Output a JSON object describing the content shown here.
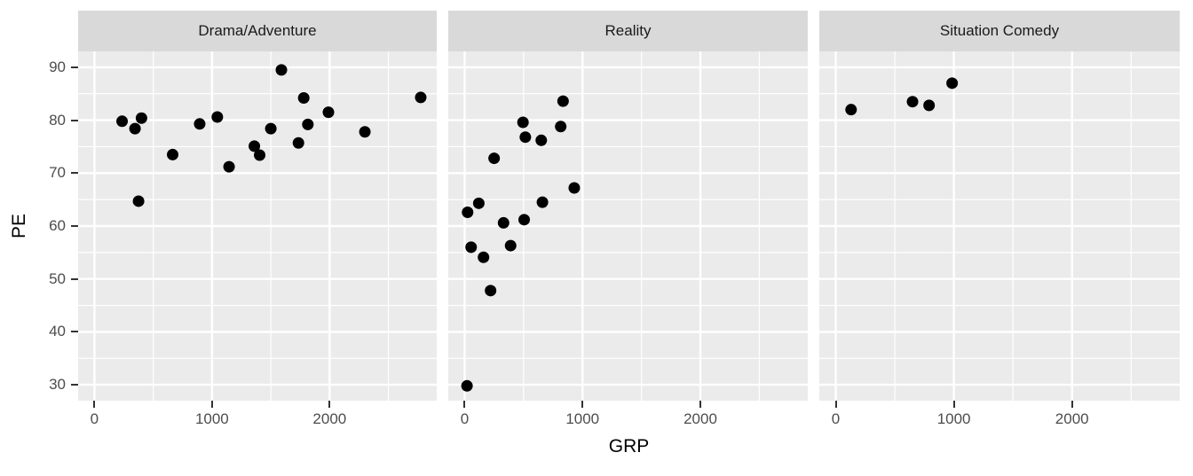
{
  "chart_data": {
    "type": "scatter",
    "title": "",
    "xlabel": "GRP",
    "ylabel": "PE",
    "x_ticks": [
      0,
      1000,
      2000
    ],
    "y_ticks": [
      30,
      40,
      50,
      60,
      70,
      80,
      90
    ],
    "x_minor": [
      500,
      1500,
      2500
    ],
    "y_minor": [
      35,
      45,
      55,
      65,
      75,
      85
    ],
    "xlim": [
      -139,
      2911
    ],
    "ylim": [
      27,
      93
    ],
    "grid": "major-and-minor-white-on-gray",
    "legend": "none",
    "facets": [
      {
        "label": "Drama/Adventure",
        "points": [
          [
            235,
            79.8
          ],
          [
            345,
            78.4
          ],
          [
            400,
            80.4
          ],
          [
            375,
            64.7
          ],
          [
            665,
            73.5
          ],
          [
            895,
            79.3
          ],
          [
            1045,
            80.6
          ],
          [
            1145,
            71.2
          ],
          [
            1360,
            75.1
          ],
          [
            1405,
            73.4
          ],
          [
            1500,
            78.4
          ],
          [
            1590,
            89.5
          ],
          [
            1735,
            75.7
          ],
          [
            1780,
            84.2
          ],
          [
            1815,
            79.2
          ],
          [
            1990,
            81.5
          ],
          [
            2300,
            77.8
          ],
          [
            2775,
            84.3
          ]
        ]
      },
      {
        "label": "Reality",
        "points": [
          [
            20,
            29.8
          ],
          [
            25,
            62.6
          ],
          [
            55,
            56.0
          ],
          [
            120,
            64.3
          ],
          [
            160,
            54.1
          ],
          [
            220,
            47.8
          ],
          [
            250,
            72.8
          ],
          [
            330,
            60.6
          ],
          [
            390,
            56.3
          ],
          [
            495,
            79.6
          ],
          [
            505,
            61.2
          ],
          [
            515,
            76.8
          ],
          [
            650,
            76.2
          ],
          [
            660,
            64.5
          ],
          [
            815,
            78.8
          ],
          [
            835,
            83.6
          ],
          [
            930,
            67.2
          ]
        ]
      },
      {
        "label": "Situation Comedy",
        "points": [
          [
            130,
            82.0
          ],
          [
            650,
            83.5
          ],
          [
            790,
            82.8
          ],
          [
            985,
            87.0
          ]
        ]
      }
    ],
    "style": {
      "panel_bg": "#EBEBEB",
      "strip_bg": "#D9D9D9",
      "strip_text": "#1A1A1A",
      "grid_color": "#FFFFFF",
      "point_color": "#000000",
      "tick_label_color": "#4D4D4D",
      "tick_mark_color": "#333333",
      "axis_title_color": "#000000"
    }
  }
}
